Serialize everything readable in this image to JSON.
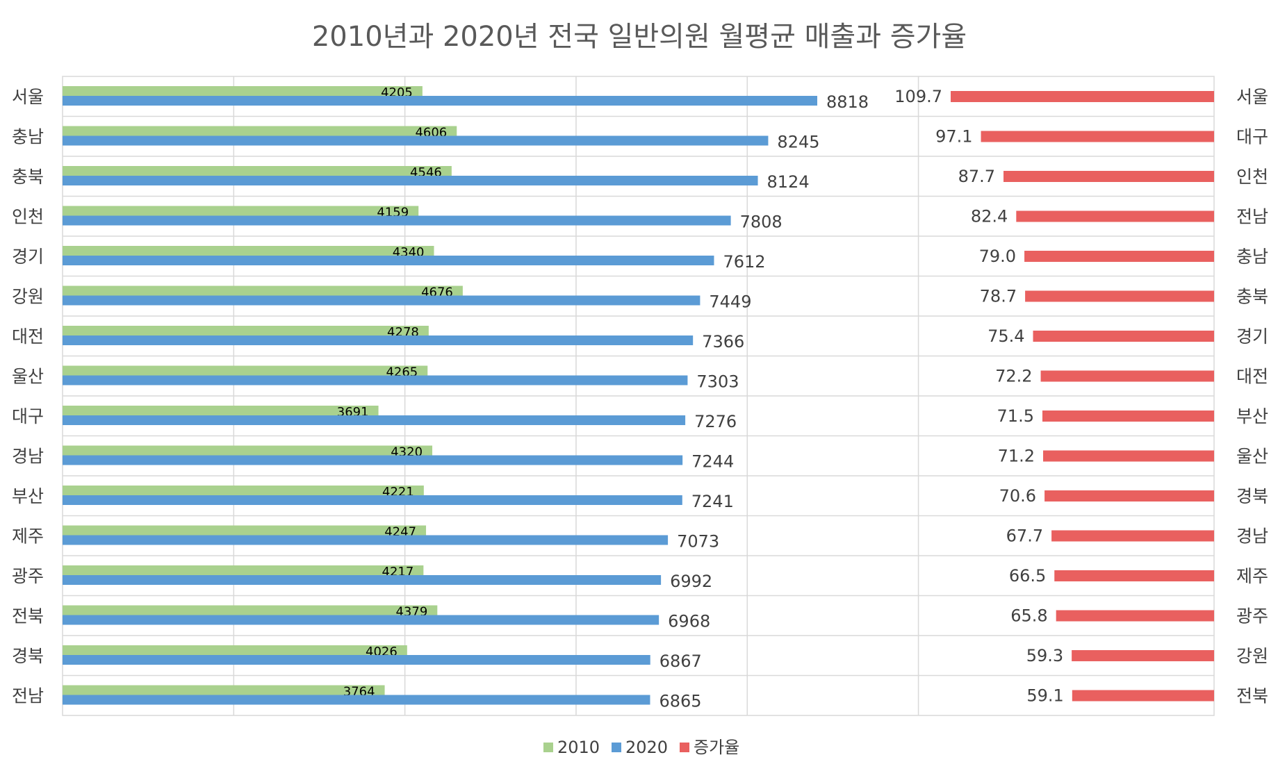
{
  "chart_data": {
    "type": "bar",
    "orientation": "horizontal",
    "title": "2010년과 2020년 전국 일반의원 월평균 매출과 증가율",
    "grid": true,
    "legend_position": "bottom",
    "colors": {
      "2010": "#a9d18e",
      "2020": "#5b9bd5",
      "증가율": "#e9605f"
    },
    "left_panel": {
      "categories": [
        "서울",
        "충남",
        "충북",
        "인천",
        "경기",
        "강원",
        "대전",
        "울산",
        "대구",
        "경남",
        "부산",
        "제주",
        "광주",
        "전북",
        "경북",
        "전남"
      ],
      "xlim": [
        0,
        10000
      ],
      "series": [
        {
          "name": "2010",
          "values": [
            4205,
            4606,
            4546,
            4159,
            4340,
            4676,
            4278,
            4265,
            3691,
            4320,
            4221,
            4247,
            4217,
            4379,
            4026,
            3764
          ]
        },
        {
          "name": "2020",
          "values": [
            8818,
            8245,
            8124,
            7808,
            7612,
            7449,
            7366,
            7303,
            7276,
            7244,
            7241,
            7073,
            6992,
            6968,
            6867,
            6865
          ]
        }
      ]
    },
    "right_panel": {
      "categories": [
        "서울",
        "대구",
        "인천",
        "전남",
        "충남",
        "충북",
        "경기",
        "대전",
        "부산",
        "울산",
        "경북",
        "경남",
        "제주",
        "광주",
        "강원",
        "전북"
      ],
      "xlim": [
        0,
        200
      ],
      "reversed": true,
      "series": [
        {
          "name": "증가율",
          "values": [
            "109.7",
            "97.1",
            "87.7",
            "82.4",
            "79.0",
            "78.7",
            "75.4",
            "72.2",
            "71.5",
            "71.2",
            "70.6",
            "67.7",
            "66.5",
            "65.8",
            "59.3",
            "59.1"
          ]
        }
      ]
    },
    "legend": [
      "2010",
      "2020",
      "증가율"
    ]
  }
}
